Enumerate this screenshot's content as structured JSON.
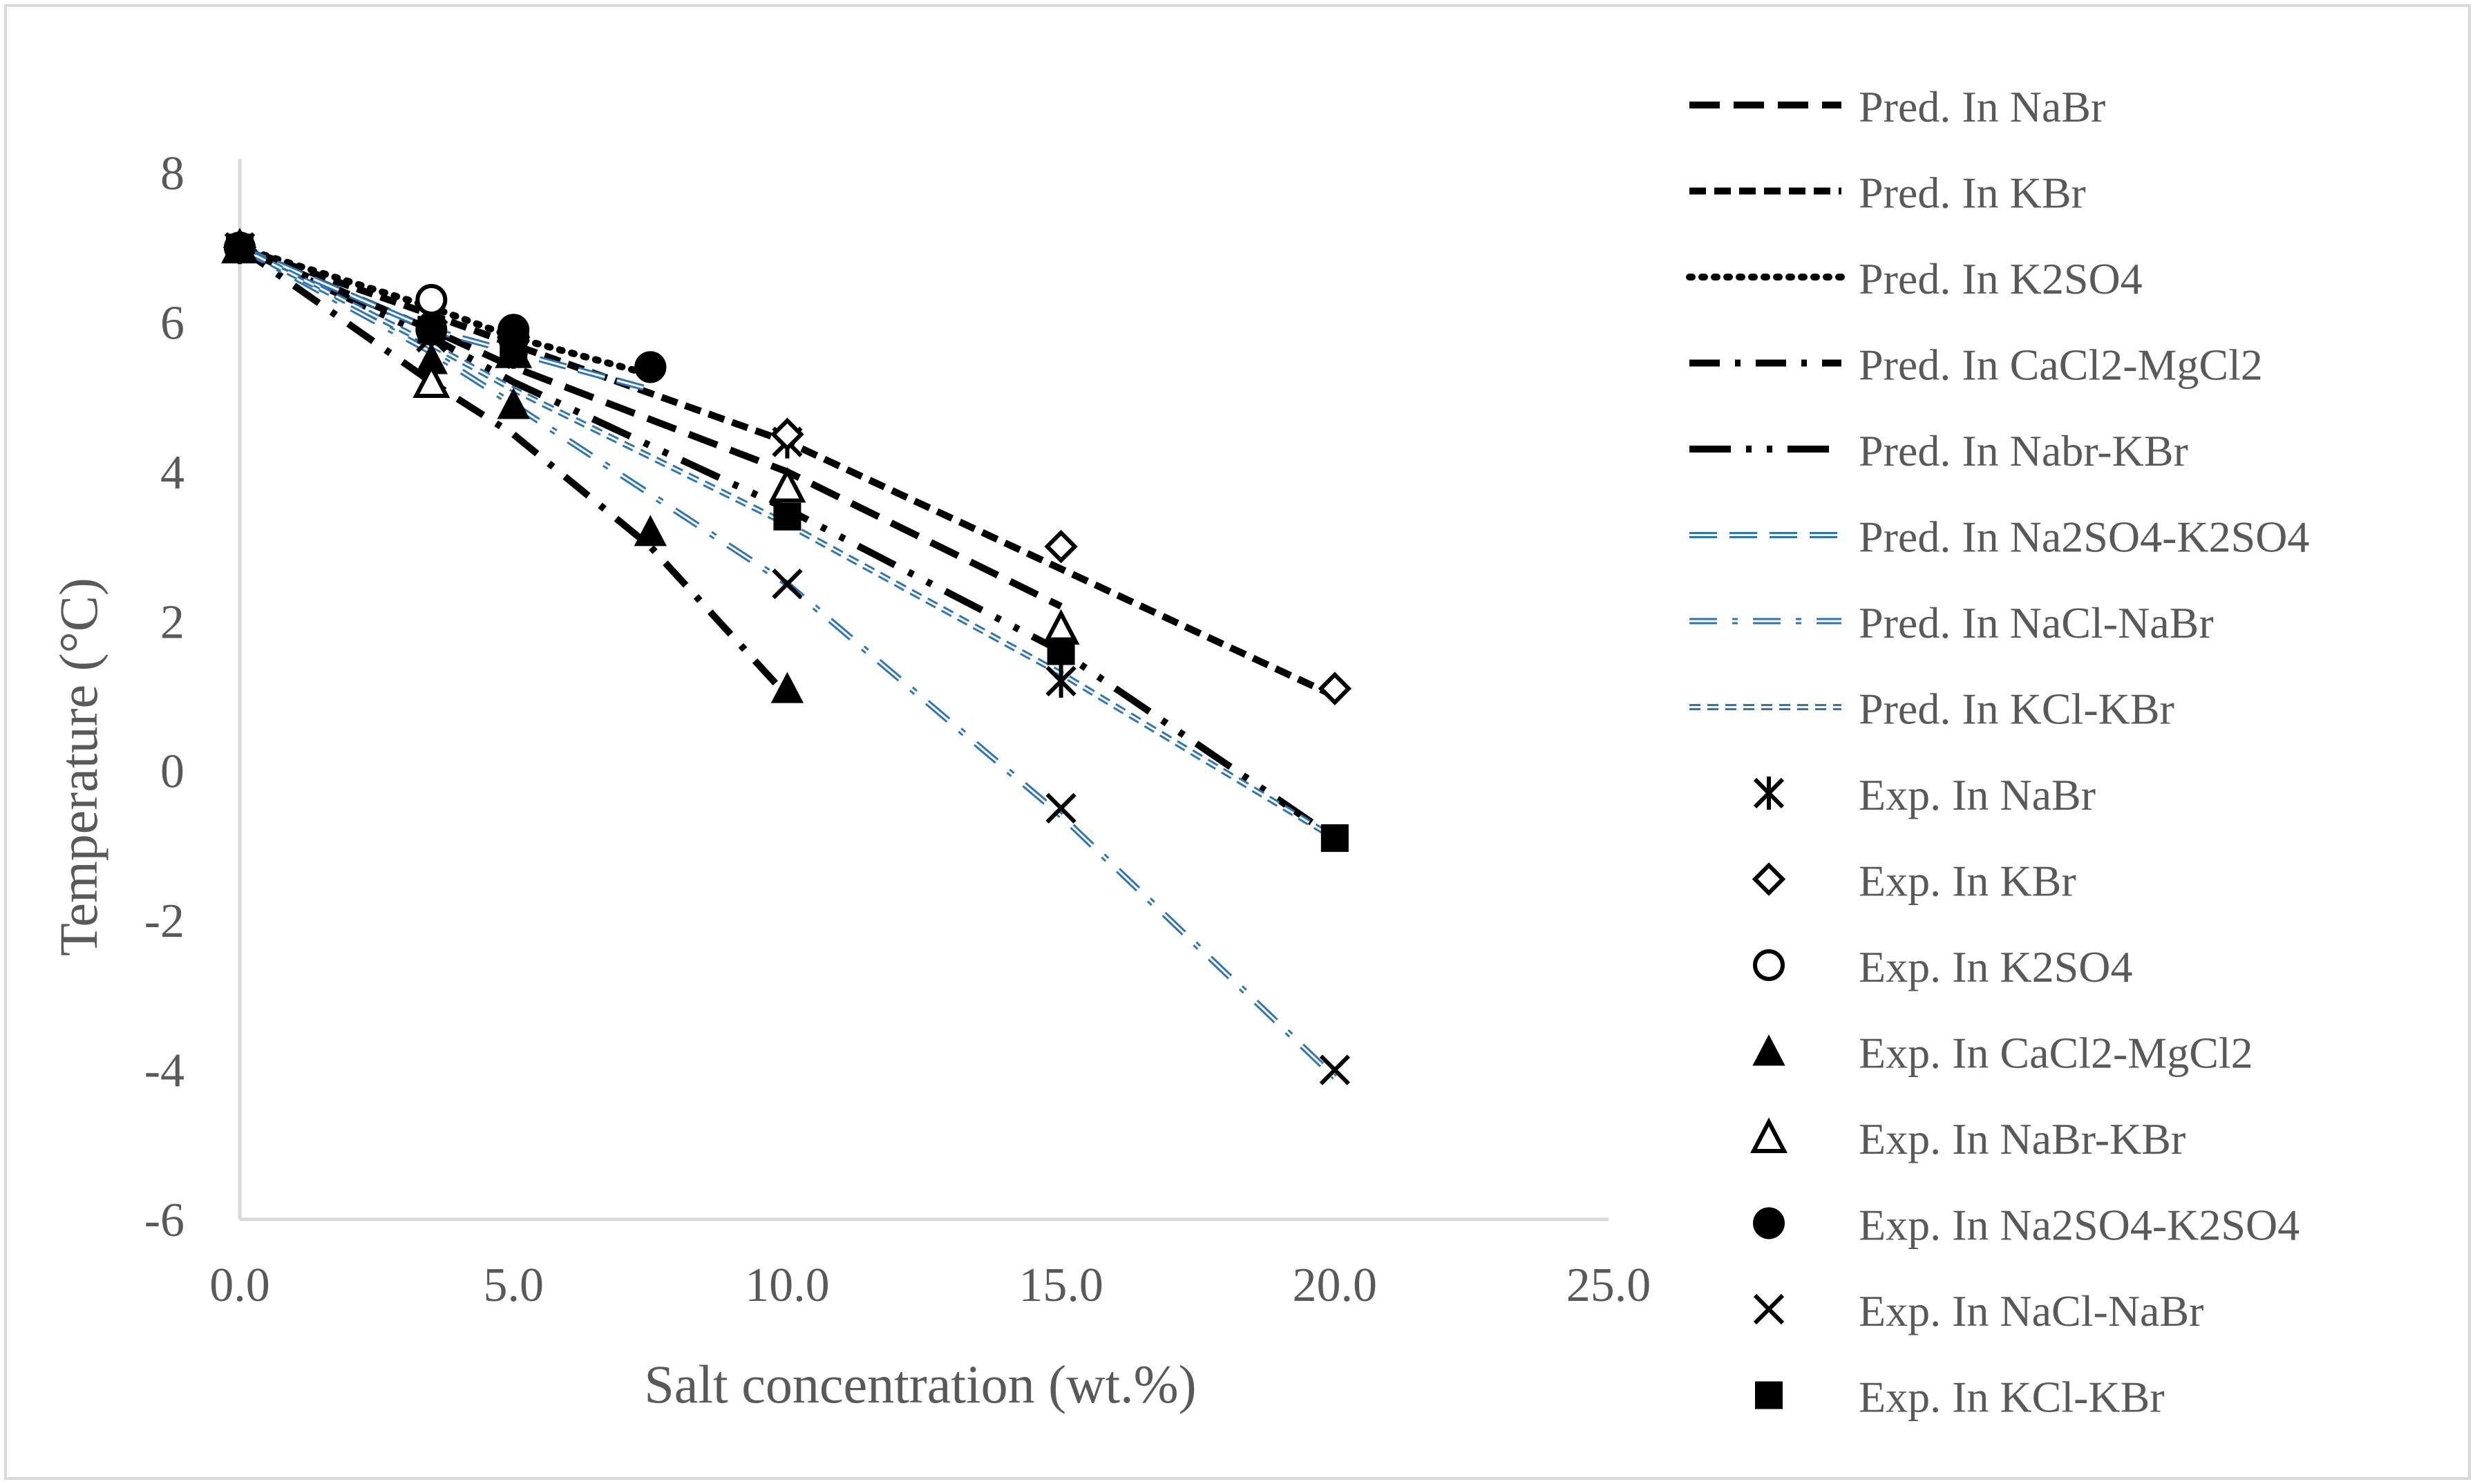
{
  "chart_data": {
    "type": "line",
    "title": "",
    "xlabel": "Salt concentration (wt.%)",
    "ylabel": "Temperature (°C)",
    "xlim": [
      0,
      25
    ],
    "ylim": [
      -6,
      8
    ],
    "xticks": [
      0,
      5,
      10,
      15,
      20,
      25
    ],
    "yticks": [
      -6,
      -4,
      -2,
      0,
      2,
      4,
      6,
      8
    ],
    "xtick_labels": [
      "0.0",
      "5.0",
      "10.0",
      "15.0",
      "20.0",
      "25.0"
    ],
    "ytick_labels": [
      "-6",
      "-4",
      "-2",
      "0",
      "2",
      "4",
      "6",
      "8"
    ],
    "grid": false,
    "legend_position": "right",
    "series": [
      {
        "name": "Pred. In NaBr",
        "kind": "line",
        "style": "longdash",
        "color": "#000000",
        "x": [
          0,
          3.5,
          5,
          10,
          15
        ],
        "y": [
          7.0,
          5.9,
          5.4,
          4.0,
          2.2
        ]
      },
      {
        "name": "Pred. In KBr",
        "kind": "line",
        "style": "dash",
        "color": "#000000",
        "x": [
          0,
          3.5,
          5,
          10,
          15,
          20
        ],
        "y": [
          7.0,
          6.1,
          5.7,
          4.4,
          2.7,
          1.0
        ]
      },
      {
        "name": "Pred. In K2SO4",
        "kind": "line",
        "style": "dot",
        "color": "#000000",
        "x": [
          0,
          3.5,
          5,
          7.5
        ],
        "y": [
          7.0,
          6.2,
          5.8,
          5.3
        ]
      },
      {
        "name": "Pred. In CaCl2-MgCl2",
        "kind": "line",
        "style": "dashdot",
        "color": "#000000",
        "x": [
          0,
          3.5,
          5,
          7.5,
          10
        ],
        "y": [
          7.0,
          5.2,
          4.5,
          3.0,
          1.0
        ]
      },
      {
        "name": "Pred. In Nabr-KBr",
        "kind": "line",
        "style": "longdashdotdot",
        "color": "#000000",
        "x": [
          0,
          3.5,
          5,
          10,
          15,
          20
        ],
        "y": [
          7.0,
          5.8,
          5.2,
          3.5,
          1.6,
          -0.9
        ]
      },
      {
        "name": "Pred. In Na2SO4-K2SO4",
        "kind": "line",
        "style": "blue-dash",
        "color": "#2e75b6",
        "x": [
          0,
          3.5,
          5,
          7.5
        ],
        "y": [
          7.0,
          5.9,
          5.6,
          5.1
        ]
      },
      {
        "name": "Pred. In NaCl-NaBr",
        "kind": "line",
        "style": "blue-dashdot",
        "color": "#2e75b6",
        "x": [
          0,
          3.5,
          5,
          10,
          15,
          20
        ],
        "y": [
          7.0,
          5.6,
          4.9,
          2.5,
          -0.6,
          -4.1
        ]
      },
      {
        "name": "Pred. In KCl-KBr",
        "kind": "line",
        "style": "blue-shortdash",
        "color": "#2e75b6",
        "x": [
          0,
          3.5,
          5,
          10,
          15,
          20
        ],
        "y": [
          7.0,
          5.7,
          5.1,
          3.3,
          1.3,
          -0.9
        ]
      },
      {
        "name": "Exp. In NaBr",
        "kind": "marker",
        "marker": "asterisk",
        "x": [
          0,
          3.5,
          5,
          10,
          15
        ],
        "y": [
          7.0,
          5.8,
          5.6,
          4.4,
          1.2
        ]
      },
      {
        "name": "Exp. In KBr",
        "kind": "marker",
        "marker": "diamond-open",
        "x": [
          0,
          3.5,
          5,
          10,
          15,
          20
        ],
        "y": [
          7.0,
          6.0,
          5.8,
          4.5,
          3.0,
          1.1
        ]
      },
      {
        "name": "Exp. In K2SO4",
        "kind": "marker",
        "marker": "circle-open",
        "x": [
          0,
          3.5,
          5,
          7.5
        ],
        "y": [
          7.0,
          6.3,
          5.8,
          5.4
        ]
      },
      {
        "name": "Exp. In CaCl2-MgCl2",
        "kind": "marker",
        "marker": "triangle-filled",
        "x": [
          0,
          3.5,
          5,
          7.5,
          10
        ],
        "y": [
          7.0,
          5.5,
          4.9,
          3.2,
          1.1
        ]
      },
      {
        "name": "Exp. In NaBr-KBr",
        "kind": "marker",
        "marker": "triangle-open",
        "x": [
          0,
          3.5,
          5,
          10,
          15
        ],
        "y": [
          7.0,
          5.2,
          5.6,
          3.8,
          1.9
        ]
      },
      {
        "name": "Exp. In Na2SO4-K2SO4",
        "kind": "marker",
        "marker": "circle-filled",
        "x": [
          0,
          3.5,
          5,
          7.5
        ],
        "y": [
          7.0,
          5.9,
          5.9,
          5.4
        ]
      },
      {
        "name": "Exp. In NaCl-NaBr",
        "kind": "marker",
        "marker": "x",
        "x": [
          0,
          3.5,
          5,
          10,
          15,
          20
        ],
        "y": [
          7.0,
          5.8,
          5.6,
          2.5,
          -0.5,
          -4.0
        ]
      },
      {
        "name": "Exp. In KCl-KBr",
        "kind": "marker",
        "marker": "square-filled",
        "x": [
          0,
          3.5,
          5,
          10,
          15,
          20
        ],
        "y": [
          7.0,
          5.9,
          5.6,
          3.4,
          1.6,
          -0.9
        ]
      }
    ]
  }
}
